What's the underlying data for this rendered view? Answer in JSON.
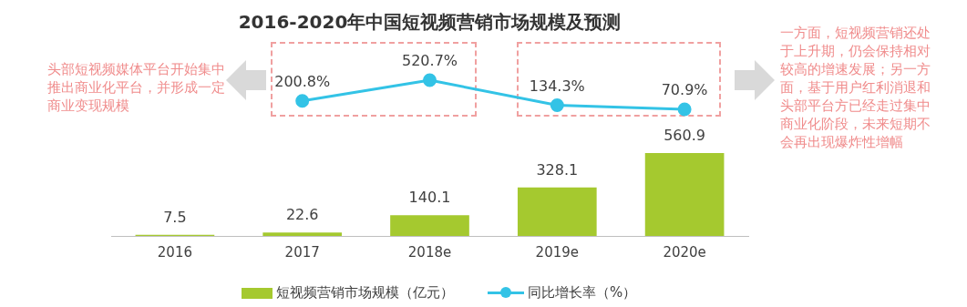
{
  "chart_data": [
    {
      "type": "line",
      "title": "2016-2020年中国短视频营销市场规模及预测",
      "categories": [
        null,
        null,
        null,
        null,
        null
      ],
      "series": [
        {
          "name": "同比增长率（%）",
          "color": "#33c3e6",
          "values": [
            null,
            200.8,
            520.7,
            134.3,
            70.9
          ],
          "value_labels": [
            null,
            "200.8%",
            "520.7%",
            "134.3%",
            "70.9%"
          ]
        }
      ],
      "marker": "circle",
      "grid": false,
      "tick_labels": false,
      "legend": "bottom"
    },
    {
      "type": "bar",
      "categories": [
        "2016",
        "2017",
        "2018e",
        "2019e",
        "2020e"
      ],
      "series": [
        {
          "name": "短视频营销市场规模（亿元）",
          "color": "#a5c92f",
          "values": [
            7.5,
            22.6,
            140.1,
            328.1,
            560.9
          ]
        }
      ],
      "data_labels": true,
      "grid": false,
      "tick_labels": "x",
      "legend": "bottom",
      "annotations": [
        "头部短视频媒体平台开始集中推出商业化平台，并形成一定商业变现规模",
        "一方面，短视频营销还处于上升期，仍会保持相对较高的增速发展；另一方面，基于用户红利消退和头部平台方已经走过集中商业化阶段，未来短期不会再出现爆炸性增幅"
      ]
    }
  ]
}
